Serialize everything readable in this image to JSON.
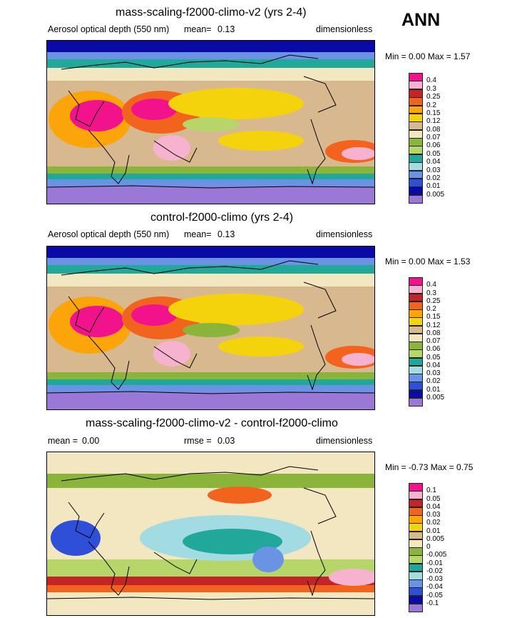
{
  "season": "ANN",
  "panels": [
    {
      "title": "mass-scaling-f2000-climo-v2 (yrs 2-4)",
      "sub_left": "Aerosol optical depth (550 nm)",
      "mean_label": "mean=",
      "mean_value": "0.13",
      "rmse_label": "",
      "rmse_value": "",
      "units": "dimensionless",
      "minmax_text": "Min =   0.00 Max =   1.57",
      "cb_labels": [
        "0.4",
        "0.3",
        "0.25",
        "0.2",
        "0.15",
        "0.12",
        "0.08",
        "0.07",
        "0.06",
        "0.05",
        "0.04",
        "0.03",
        "0.02",
        "0.01",
        "0.005"
      ],
      "cb_colors": [
        "#f2138c",
        "#f7b2cf",
        "#c22427",
        "#f2631d",
        "#fca50a",
        "#f5d30c",
        "#d8b88f",
        "#f2e7c0",
        "#8ab53a",
        "#b7d66a",
        "#22a89a",
        "#a3dbe3",
        "#6b93e3",
        "#2f4fd8",
        "#0a0aa6",
        "#9b78d6"
      ]
    },
    {
      "title": "control-f2000-climo (yrs 2-4)",
      "sub_left": "Aerosol optical depth (550 nm)",
      "mean_label": "mean=",
      "mean_value": "0.13",
      "rmse_label": "",
      "rmse_value": "",
      "units": "dimensionless",
      "minmax_text": "Min =   0.00 Max =   1.53",
      "cb_labels": [
        "0.4",
        "0.3",
        "0.25",
        "0.2",
        "0.15",
        "0.12",
        "0.08",
        "0.07",
        "0.06",
        "0.05",
        "0.04",
        "0.03",
        "0.02",
        "0.01",
        "0.005"
      ],
      "cb_colors": [
        "#f2138c",
        "#f7b2cf",
        "#c22427",
        "#f2631d",
        "#fca50a",
        "#f5d30c",
        "#d8b88f",
        "#f2e7c0",
        "#8ab53a",
        "#b7d66a",
        "#22a89a",
        "#a3dbe3",
        "#6b93e3",
        "#2f4fd8",
        "#0a0aa6",
        "#9b78d6"
      ]
    },
    {
      "title": "mass-scaling-f2000-climo-v2 - control-f2000-climo",
      "sub_left": "",
      "mean_label": "mean =",
      "mean_value": "0.00",
      "rmse_label": "rmse =",
      "rmse_value": "0.03",
      "units": "dimensionless",
      "minmax_text": "Min =  -0.73 Max =   0.75",
      "cb_labels": [
        "0.1",
        "0.05",
        "0.04",
        "0.03",
        "0.02",
        "0.01",
        "0.005",
        "0",
        "-0.005",
        "-0.01",
        "-0.02",
        "-0.03",
        "-0.04",
        "-0.05",
        "-0.1"
      ],
      "cb_colors": [
        "#f2138c",
        "#f7b2cf",
        "#c22427",
        "#f2631d",
        "#fca50a",
        "#f5d30c",
        "#d8b88f",
        "#f2e7c0",
        "#8ab53a",
        "#b7d66a",
        "#22a89a",
        "#a3dbe3",
        "#6b93e3",
        "#2f4fd8",
        "#0a0aa6",
        "#9b78d6"
      ]
    }
  ],
  "chart_data": [
    {
      "type": "heatmap",
      "title": "mass-scaling-f2000-climo-v2 (yrs 2-4)",
      "variable": "Aerosol optical depth (550 nm)",
      "units": "dimensionless",
      "mean": 0.13,
      "min": 0.0,
      "max": 1.57,
      "contour_levels": [
        0.005,
        0.01,
        0.02,
        0.03,
        0.04,
        0.05,
        0.06,
        0.07,
        0.08,
        0.12,
        0.15,
        0.2,
        0.25,
        0.3,
        0.4
      ]
    },
    {
      "type": "heatmap",
      "title": "control-f2000-climo (yrs 2-4)",
      "variable": "Aerosol optical depth (550 nm)",
      "units": "dimensionless",
      "mean": 0.13,
      "min": 0.0,
      "max": 1.53,
      "contour_levels": [
        0.005,
        0.01,
        0.02,
        0.03,
        0.04,
        0.05,
        0.06,
        0.07,
        0.08,
        0.12,
        0.15,
        0.2,
        0.25,
        0.3,
        0.4
      ]
    },
    {
      "type": "heatmap",
      "title": "mass-scaling-f2000-climo-v2 - control-f2000-climo",
      "units": "dimensionless",
      "mean": 0.0,
      "rmse": 0.03,
      "min": -0.73,
      "max": 0.75,
      "contour_levels": [
        -0.1,
        -0.05,
        -0.04,
        -0.03,
        -0.02,
        -0.01,
        -0.005,
        0,
        0.005,
        0.01,
        0.02,
        0.03,
        0.04,
        0.05,
        0.1
      ]
    }
  ]
}
